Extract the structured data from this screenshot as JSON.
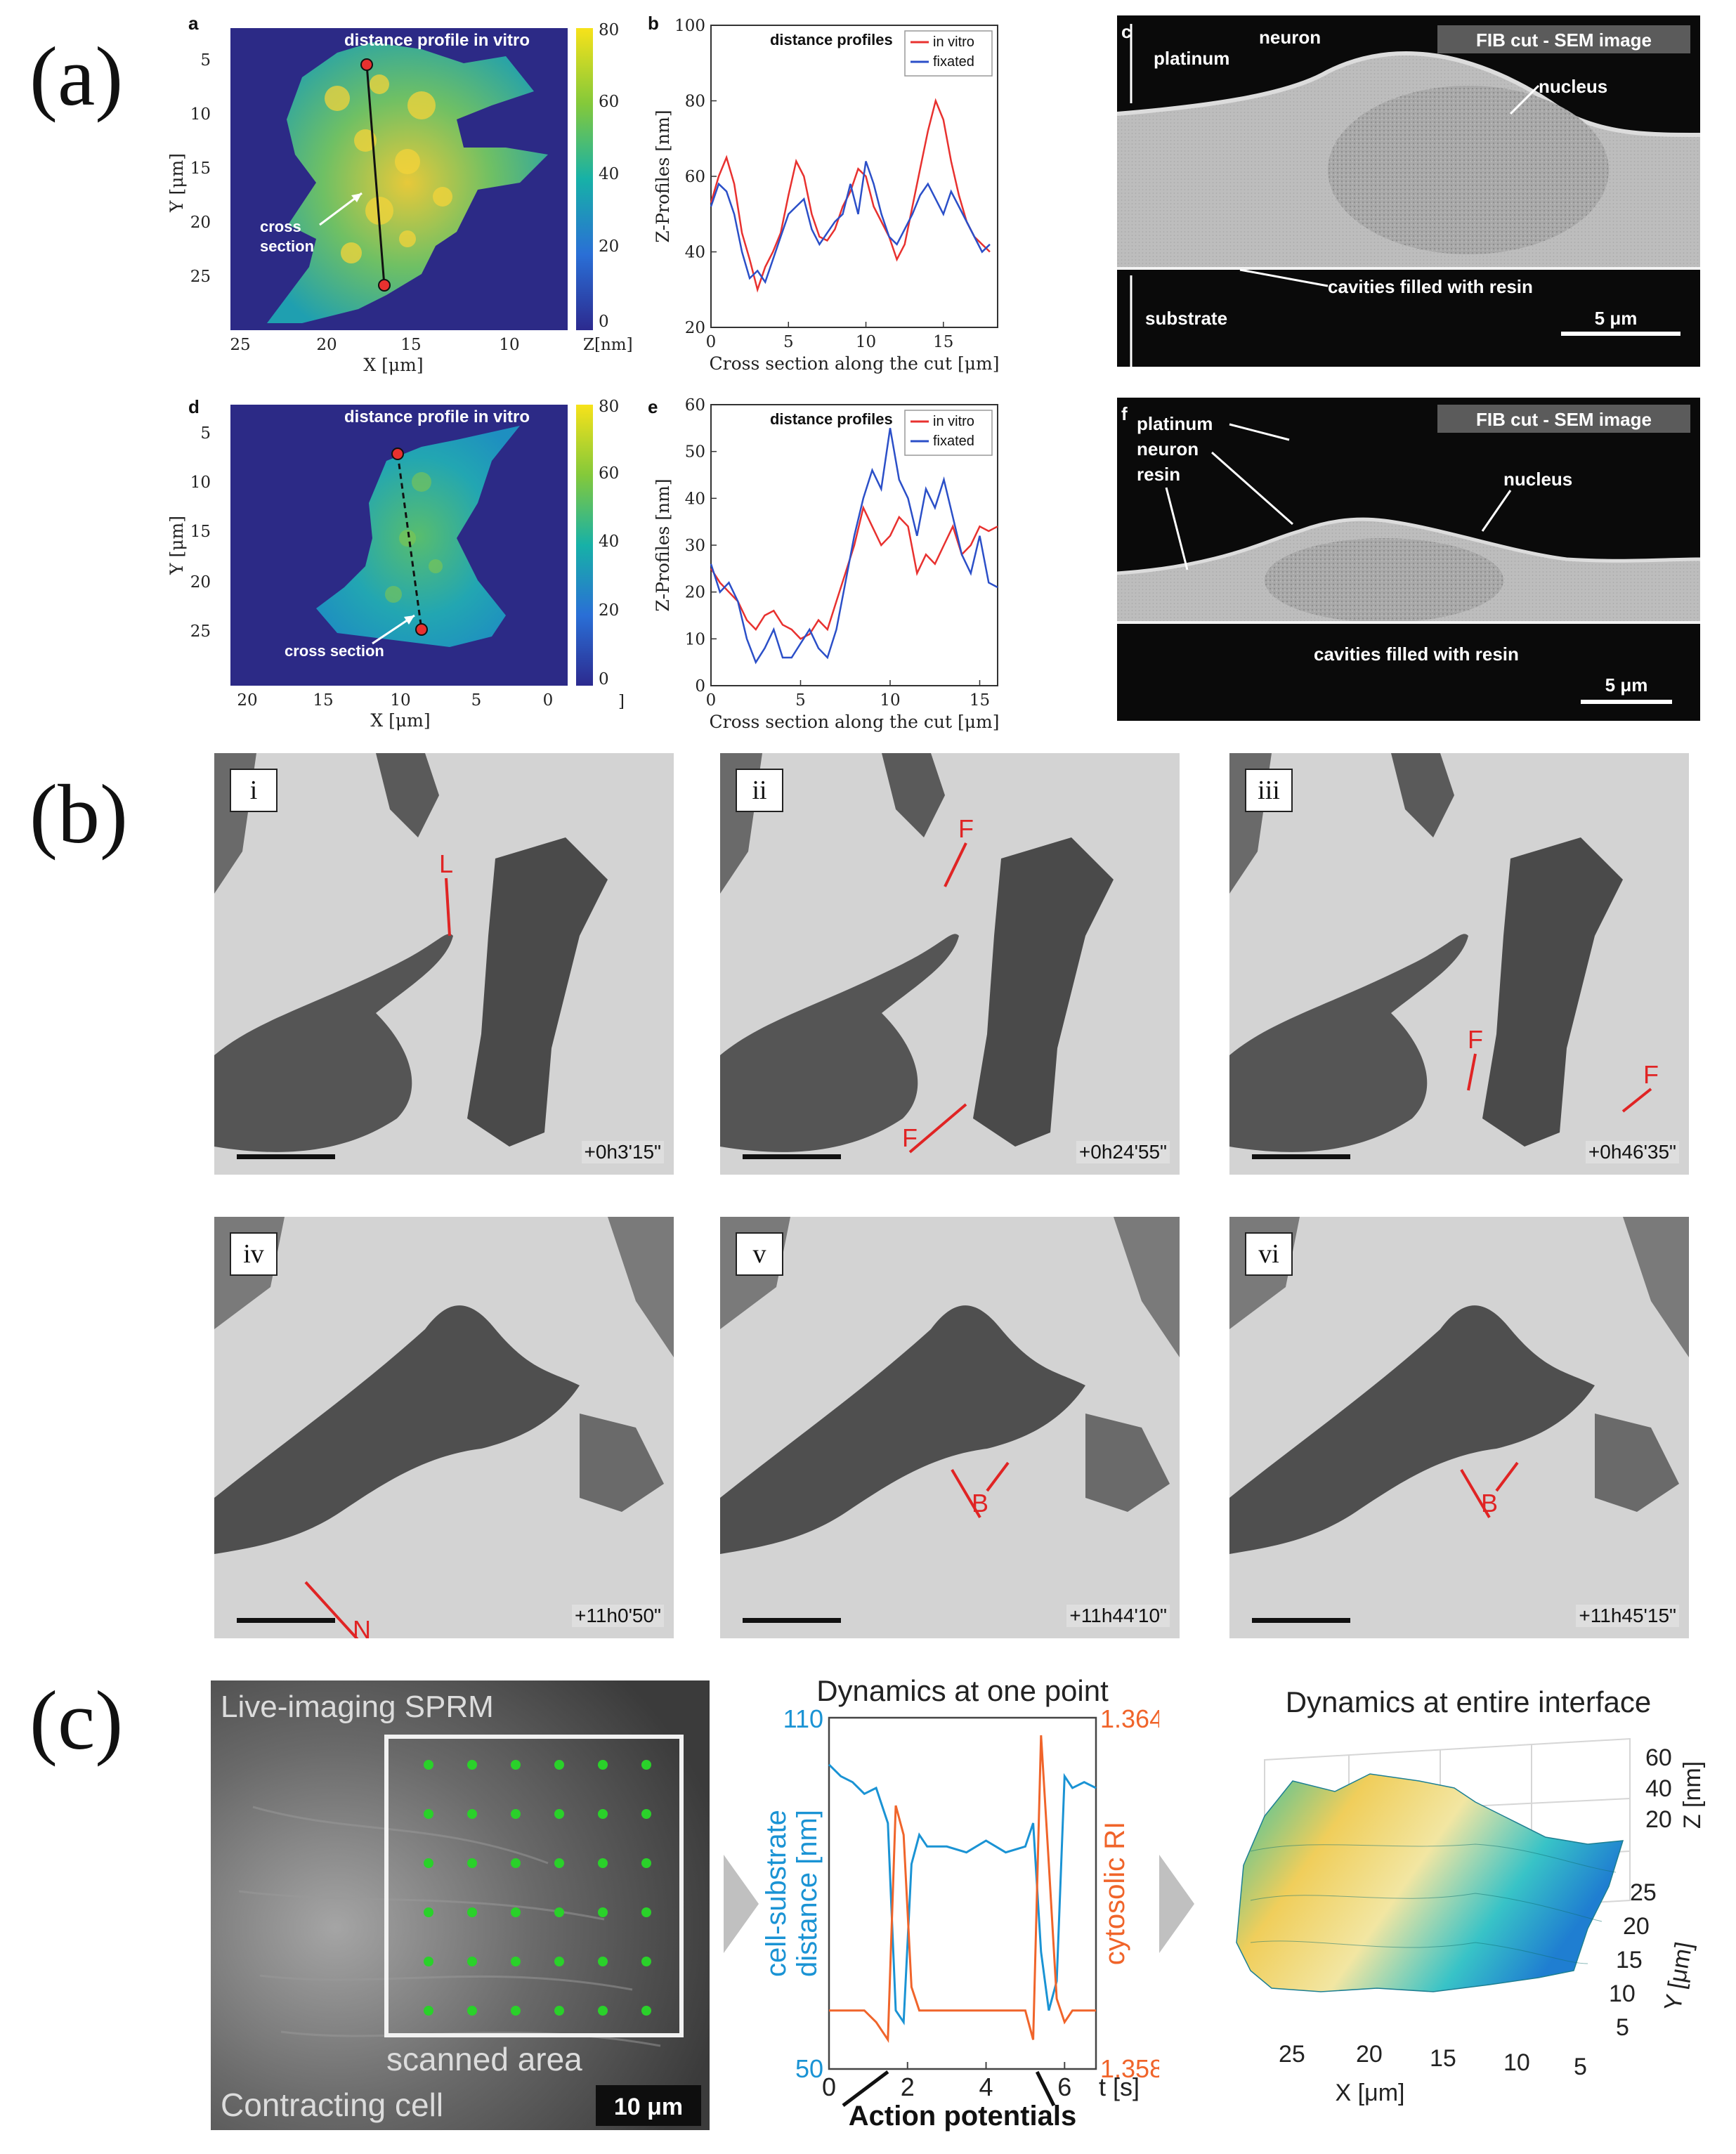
{
  "panels": {
    "a": "(a)",
    "b": "(b)",
    "c": "(c)"
  },
  "fig_a": {
    "sub_a": "a",
    "sub_b": "b",
    "sub_c": "c",
    "sub_d": "d",
    "sub_e": "e",
    "sub_f": "f",
    "map_top": {
      "title": "distance profile in vitro",
      "annotation": "cross\nsection",
      "xlabel": "X [μm]",
      "ylabel": "Y [μm]",
      "xticks": [
        "25",
        "20",
        "15",
        "10"
      ],
      "yticks": [
        "5",
        "10",
        "15",
        "20",
        "25"
      ],
      "cbar_ticks": [
        "80",
        "60",
        "40",
        "20",
        "0"
      ],
      "cbar_unit": "Z[nm]"
    },
    "map_bottom": {
      "title": "distance profile in vitro",
      "annotation": "cross section",
      "xlabel": "X [μm]",
      "ylabel": "Y [μm]",
      "xticks": [
        "20",
        "15",
        "10",
        "5",
        "0"
      ],
      "yticks": [
        "5",
        "10",
        "15",
        "20",
        "25"
      ],
      "cbar_ticks": [
        "80",
        "60",
        "40",
        "20",
        "0"
      ],
      "cbar_unit": "]"
    },
    "sem_top": {
      "badge": "FIB cut - SEM image",
      "labels": [
        "platinum",
        "neuron",
        "nucleus",
        "cavities filled with resin",
        "substrate"
      ],
      "scale": "5 μm"
    },
    "sem_bottom": {
      "badge": "FIB cut - SEM image",
      "labels": [
        "platinum",
        "neuron",
        "resin",
        "nucleus",
        "cavities filled with resin"
      ],
      "scale": "5 μm"
    }
  },
  "chart_data": [
    {
      "type": "line",
      "title": "distance profiles",
      "xlabel": "Cross section along the cut [μm]",
      "ylabel": "Z-Profiles [nm]",
      "xlim": [
        0,
        18.5
      ],
      "ylim": [
        20,
        100
      ],
      "xticks": [
        0,
        5,
        10,
        15
      ],
      "yticks": [
        20,
        40,
        60,
        80,
        100
      ],
      "legend": "top-right",
      "x": [
        0,
        0.5,
        1,
        1.5,
        2,
        2.5,
        3,
        3.5,
        4,
        4.5,
        5,
        5.5,
        6,
        6.5,
        7,
        7.5,
        8,
        8.5,
        9,
        9.5,
        10,
        10.5,
        11,
        11.5,
        12,
        12.5,
        13,
        13.5,
        14,
        14.5,
        15,
        15.5,
        16,
        16.5,
        17,
        17.5,
        18
      ],
      "series": [
        {
          "name": "in vitro",
          "color": "#e8312f",
          "values": [
            53,
            60,
            65,
            58,
            45,
            38,
            30,
            36,
            40,
            45,
            55,
            64,
            60,
            50,
            44,
            43,
            46,
            52,
            56,
            62,
            60,
            52,
            48,
            44,
            38,
            42,
            52,
            62,
            72,
            80,
            75,
            64,
            55,
            48,
            44,
            42,
            40
          ]
        },
        {
          "name": "fixated",
          "color": "#2b4fc8",
          "values": [
            52,
            58,
            56,
            50,
            40,
            33,
            35,
            32,
            38,
            44,
            50,
            52,
            54,
            46,
            42,
            45,
            48,
            50,
            58,
            50,
            64,
            58,
            50,
            44,
            42,
            46,
            50,
            55,
            58,
            54,
            50,
            56,
            52,
            48,
            44,
            40,
            42
          ]
        }
      ]
    },
    {
      "type": "line",
      "title": "distance profiles",
      "xlabel": "Cross section along the cut [μm]",
      "ylabel": "Z-Profiles [nm]",
      "xlim": [
        0,
        16
      ],
      "ylim": [
        0,
        60
      ],
      "xticks": [
        0,
        5,
        10,
        15
      ],
      "yticks": [
        0,
        10,
        20,
        30,
        40,
        50,
        60
      ],
      "legend": "top-right",
      "x": [
        0,
        0.5,
        1,
        1.5,
        2,
        2.5,
        3,
        3.5,
        4,
        4.5,
        5,
        5.5,
        6,
        6.5,
        7,
        7.5,
        8,
        8.5,
        9,
        9.5,
        10,
        10.5,
        11,
        11.5,
        12,
        12.5,
        13,
        13.5,
        14,
        14.5,
        15,
        15.5,
        16
      ],
      "series": [
        {
          "name": "in vitro",
          "color": "#e8312f",
          "values": [
            25,
            22,
            20,
            18,
            14,
            12,
            15,
            16,
            13,
            12,
            10,
            11,
            14,
            12,
            18,
            24,
            30,
            38,
            34,
            30,
            32,
            36,
            34,
            24,
            28,
            26,
            30,
            34,
            28,
            30,
            34,
            33,
            34
          ]
        },
        {
          "name": "fixated",
          "color": "#2b4fc8",
          "values": [
            26,
            20,
            22,
            18,
            10,
            5,
            8,
            12,
            6,
            6,
            9,
            12,
            8,
            6,
            12,
            22,
            32,
            40,
            46,
            42,
            55,
            44,
            40,
            32,
            42,
            38,
            44,
            36,
            28,
            24,
            32,
            22,
            21
          ]
        }
      ]
    },
    {
      "type": "line",
      "title": "Dynamics at one point",
      "xlabel": "t [s]",
      "ylabel": "cell-substrate distance [nm]",
      "ylabel_right": "cytosolic RI",
      "xticks": [
        0,
        2,
        4,
        6
      ],
      "xlim": [
        0,
        6.8
      ],
      "ylim": [
        50,
        110
      ],
      "ylim_right": [
        1.358,
        1.364
      ],
      "annotation": "Action potentials",
      "x": [
        0,
        0.3,
        0.6,
        0.9,
        1.2,
        1.5,
        1.7,
        1.9,
        2.1,
        2.3,
        2.5,
        3.0,
        3.5,
        4.0,
        4.5,
        5.0,
        5.2,
        5.4,
        5.6,
        5.8,
        6.0,
        6.2,
        6.5,
        6.8
      ],
      "series": [
        {
          "name": "cell-substrate distance",
          "color": "#1a93d4",
          "values": [
            102,
            100,
            99,
            97,
            98,
            92,
            60,
            58,
            85,
            90,
            88,
            88,
            87,
            89,
            87,
            88,
            92,
            70,
            60,
            65,
            100,
            98,
            99,
            98
          ]
        },
        {
          "name": "cytosolic RI",
          "color": "#f0642a",
          "axis": "right",
          "values": [
            1.359,
            1.359,
            1.359,
            1.359,
            1.3588,
            1.3585,
            1.3625,
            1.362,
            1.3594,
            1.359,
            1.359,
            1.359,
            1.359,
            1.359,
            1.359,
            1.359,
            1.3585,
            1.3637,
            1.3615,
            1.3592,
            1.3588,
            1.359,
            1.359,
            1.359
          ]
        }
      ]
    }
  ],
  "fig_b": {
    "frames": [
      {
        "roman": "i",
        "time": "+0h3'15\"",
        "labels": [
          "L"
        ]
      },
      {
        "roman": "ii",
        "time": "+0h24'55\"",
        "labels": [
          "F",
          "F"
        ]
      },
      {
        "roman": "iii",
        "time": "+0h46'35\"",
        "labels": [
          "F",
          "F"
        ]
      },
      {
        "roman": "iv",
        "time": "+11h0'50\"",
        "labels": [
          "N"
        ]
      },
      {
        "roman": "v",
        "time": "+11h44'10\"",
        "labels": [
          "B"
        ]
      },
      {
        "roman": "vi",
        "time": "+11h45'15\"",
        "labels": [
          "B"
        ]
      }
    ]
  },
  "fig_c": {
    "left_title": "Live-imaging SPRM",
    "scanned": "scanned area",
    "contracting": "Contracting cell",
    "scale": "10 μm",
    "left_axis_top": "110",
    "left_axis_bottom": "50",
    "right_axis_top": "1.364",
    "right_axis_bottom": "1.358",
    "xticks": [
      "0",
      "2",
      "4",
      "6"
    ],
    "xunit": "t [s]",
    "surface": {
      "title": "Dynamics at entire interface",
      "xlabel": "X [μm]",
      "ylabel": "Y [μm]",
      "zlabel": "Z [nm]",
      "xticks": [
        "25",
        "20",
        "15",
        "10",
        "5"
      ],
      "yticks": [
        "25",
        "20",
        "15",
        "10",
        "5"
      ],
      "zticks": [
        "60",
        "40",
        "20"
      ]
    }
  }
}
